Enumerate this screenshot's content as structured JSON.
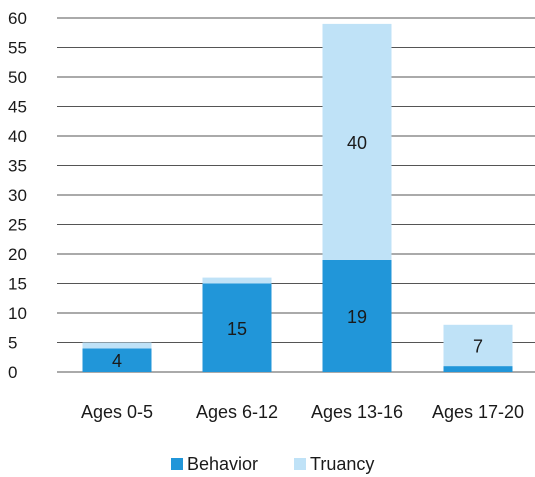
{
  "chart_data": {
    "type": "bar",
    "stacked": true,
    "categories": [
      "Ages 0-5",
      "Ages 6-12",
      "Ages 13-16",
      "Ages 17-20"
    ],
    "series": [
      {
        "name": "Behavior",
        "values": [
          4,
          15,
          19,
          1
        ],
        "color": "#2196d9",
        "labels": [
          "4",
          "15",
          "19",
          ""
        ]
      },
      {
        "name": "Truancy",
        "values": [
          1,
          1,
          40,
          7
        ],
        "color": "#bfe2f7",
        "labels": [
          "",
          "",
          "40",
          "7"
        ]
      }
    ],
    "ylim": [
      0,
      60
    ],
    "yticks": [
      0,
      5,
      10,
      15,
      20,
      25,
      30,
      35,
      40,
      45,
      50,
      55,
      60
    ],
    "grid": true,
    "legend": "bottom"
  }
}
